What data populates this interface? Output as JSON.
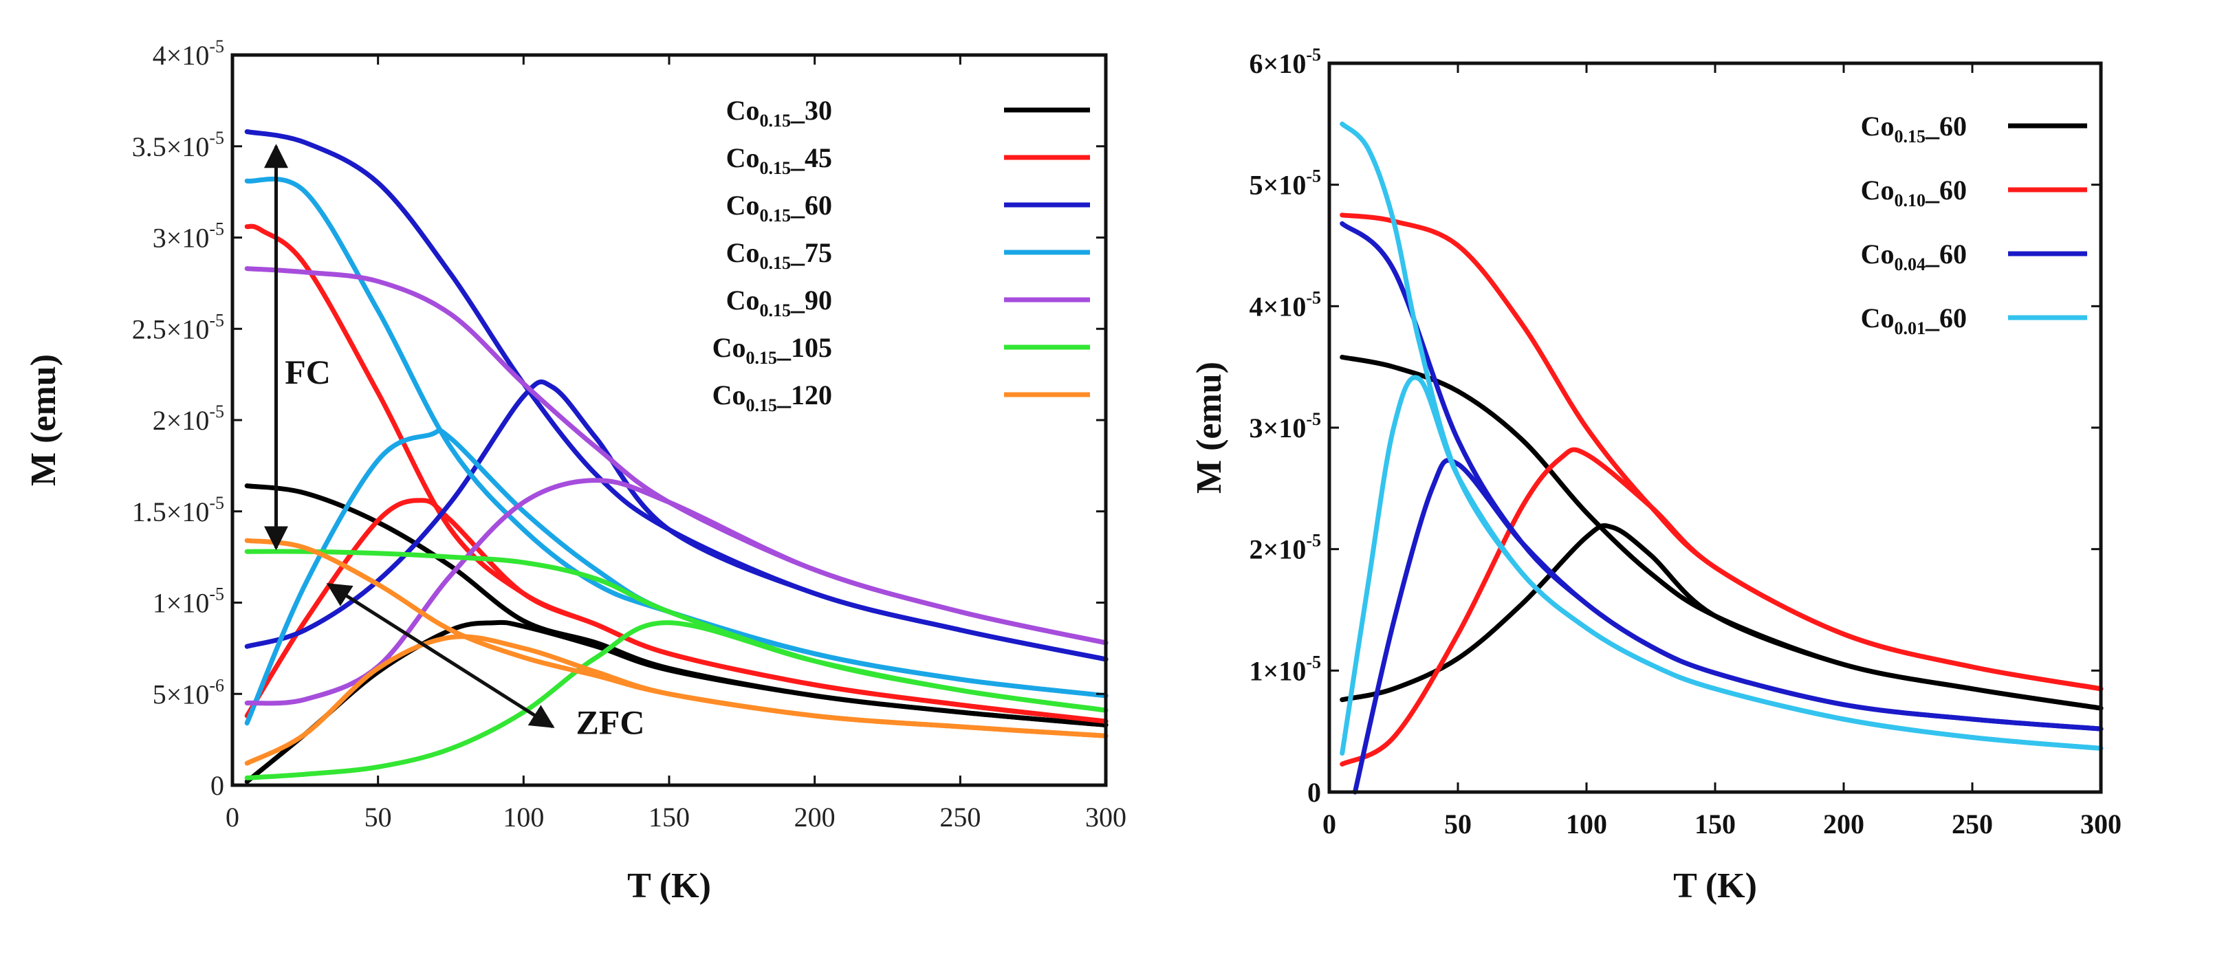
{
  "chart_data": [
    {
      "type": "line",
      "title": "",
      "xlabel": "T (K)",
      "ylabel": "M (emu)",
      "xlim": [
        0,
        300
      ],
      "ylim": [
        0,
        4e-05
      ],
      "x_ticks": [
        "0",
        "50",
        "100",
        "150",
        "200",
        "250",
        "300"
      ],
      "y_ticks": [
        {
          "value": 0,
          "mantissa": "0",
          "exponent": ""
        },
        {
          "value": 5e-06,
          "mantissa": "5×10",
          "exponent": "-6"
        },
        {
          "value": 1e-05,
          "mantissa": "1×10",
          "exponent": "-5"
        },
        {
          "value": 1.5e-05,
          "mantissa": "1.5×10",
          "exponent": "-5"
        },
        {
          "value": 2e-05,
          "mantissa": "2×10",
          "exponent": "-5"
        },
        {
          "value": 2.5e-05,
          "mantissa": "2.5×10",
          "exponent": "-5"
        },
        {
          "value": 3e-05,
          "mantissa": "3×10",
          "exponent": "-5"
        },
        {
          "value": 3.5e-05,
          "mantissa": "3.5×10",
          "exponent": "-5"
        },
        {
          "value": 4e-05,
          "mantissa": "4×10",
          "exponent": "-5"
        }
      ],
      "legend_position": "top-right",
      "annotations": [
        {
          "text": "FC",
          "arrow": "double-vertical",
          "from": [
            15,
            3.5e-05
          ],
          "to": [
            15,
            1.3e-05
          ],
          "label_at": [
            18,
            2.2e-05
          ]
        },
        {
          "text": "ZFC",
          "arrow": "double-diagonal",
          "from": [
            33,
            1.1e-05
          ],
          "to": [
            110,
            3.2e-06
          ],
          "label_at": [
            118,
            2.8e-06
          ]
        }
      ],
      "series": [
        {
          "name": "Co0.15_30",
          "label_main": "Co",
          "label_sub": "0.15",
          "label_tail": "_30",
          "color": "#000000",
          "fc": {
            "x": [
              5,
              25,
              50,
              75,
              100,
              125,
              150,
              200,
              250,
              300
            ],
            "y": [
              16.4,
              16.0,
              14.4,
              12.0,
              9.0,
              7.8,
              6.4,
              4.9,
              4.0,
              3.3
            ]
          },
          "zfc": {
            "x": [
              5,
              25,
              50,
              75,
              90,
              100,
              125,
              150,
              200,
              250,
              300
            ],
            "y": [
              0.2,
              2.8,
              6.2,
              8.5,
              8.9,
              8.7,
              7.6,
              6.3,
              4.9,
              4.0,
              3.3
            ]
          }
        },
        {
          "name": "Co0.15_45",
          "label_main": "Co",
          "label_sub": "0.15",
          "label_tail": "_45",
          "color": "#ff1a1a",
          "fc": {
            "x": [
              5,
              10,
              25,
              50,
              75,
              100,
              125,
              150,
              200,
              250,
              300
            ],
            "y": [
              30.6,
              30.4,
              28.5,
              21.5,
              14.0,
              10.5,
              8.8,
              7.2,
              5.5,
              4.4,
              3.5
            ]
          },
          "zfc": {
            "x": [
              5,
              25,
              50,
              65,
              75,
              100,
              125,
              150,
              200,
              250,
              300
            ],
            "y": [
              3.8,
              9.0,
              14.5,
              15.6,
              14.5,
              10.5,
              8.8,
              7.2,
              5.5,
              4.4,
              3.5
            ]
          }
        },
        {
          "name": "Co0.15_60",
          "label_main": "Co",
          "label_sub": "0.15",
          "label_tail": "_60",
          "color": "#1a1ac8",
          "fc": {
            "x": [
              5,
              25,
              50,
              75,
              100,
              125,
              150,
              200,
              250,
              300
            ],
            "y": [
              35.8,
              35.2,
              33.0,
              28.0,
              22.0,
              17.0,
              14.0,
              10.5,
              8.5,
              6.9
            ]
          },
          "zfc": {
            "x": [
              5,
              25,
              50,
              75,
              100,
              110,
              125,
              150,
              200,
              250,
              300
            ],
            "y": [
              7.6,
              8.5,
              11.2,
              15.5,
              21.3,
              21.8,
              19.0,
              14.0,
              10.5,
              8.5,
              6.9
            ]
          }
        },
        {
          "name": "Co0.15_75",
          "label_main": "Co",
          "label_sub": "0.15",
          "label_tail": "_75",
          "color": "#1aa6e6",
          "fc": {
            "x": [
              5,
              25,
              50,
              75,
              100,
              125,
              150,
              200,
              250,
              300
            ],
            "y": [
              33.1,
              32.5,
              26.0,
              18.5,
              14.0,
              11.0,
              9.5,
              7.2,
              5.8,
              4.9
            ]
          },
          "zfc": {
            "x": [
              5,
              25,
              50,
              68,
              75,
              100,
              125,
              150,
              200,
              250,
              300
            ],
            "y": [
              3.4,
              11.0,
              17.8,
              19.2,
              19.0,
              15.0,
              11.8,
              9.5,
              7.2,
              5.8,
              4.9
            ]
          }
        },
        {
          "name": "Co0.15_90",
          "label_main": "Co",
          "label_sub": "0.15",
          "label_tail": "_90",
          "color": "#a64ddc",
          "fc": {
            "x": [
              5,
              25,
              50,
              75,
              100,
              125,
              150,
              200,
              250,
              300
            ],
            "y": [
              28.3,
              28.1,
              27.6,
              25.8,
              22.0,
              18.5,
              15.5,
              11.8,
              9.5,
              7.8
            ]
          },
          "zfc": {
            "x": [
              5,
              25,
              50,
              75,
              100,
              125,
              150,
              200,
              250,
              300
            ],
            "y": [
              4.5,
              4.7,
              6.5,
              11.5,
              15.5,
              16.7,
              15.5,
              11.8,
              9.5,
              7.8
            ]
          }
        },
        {
          "name": "Co0.15_105",
          "label_main": "Co",
          "label_sub": "0.15",
          "label_tail": "_105",
          "color": "#33e633",
          "fc": {
            "x": [
              5,
              25,
              50,
              75,
              100,
              125,
              150,
              200,
              250,
              300
            ],
            "y": [
              12.8,
              12.8,
              12.7,
              12.5,
              12.2,
              11.3,
              9.5,
              6.8,
              5.2,
              4.1
            ]
          },
          "zfc": {
            "x": [
              5,
              25,
              50,
              75,
              100,
              125,
              150,
              200,
              250,
              300
            ],
            "y": [
              0.4,
              0.6,
              1.0,
              2.0,
              4.0,
              7.0,
              8.9,
              6.8,
              5.2,
              4.1
            ]
          }
        },
        {
          "name": "Co0.15_120",
          "label_main": "Co",
          "label_sub": "0.15",
          "label_tail": "_120",
          "color": "#ff8c26",
          "fc": {
            "x": [
              5,
              25,
              50,
              75,
              100,
              125,
              150,
              200,
              250,
              300
            ],
            "y": [
              13.4,
              13.0,
              11.0,
              8.5,
              7.0,
              6.0,
              5.0,
              3.8,
              3.2,
              2.7
            ]
          },
          "zfc": {
            "x": [
              5,
              25,
              50,
              75,
              100,
              125,
              150,
              200,
              250,
              300
            ],
            "y": [
              1.2,
              2.8,
              6.4,
              8.1,
              7.5,
              6.2,
              5.0,
              3.8,
              3.2,
              2.7
            ]
          }
        }
      ],
      "y_unit_scale": 1e-06
    },
    {
      "type": "line",
      "title": "",
      "xlabel": "T (K)",
      "ylabel": "M (emu)",
      "xlim": [
        0,
        300
      ],
      "ylim": [
        0,
        6e-05
      ],
      "x_ticks": [
        "0",
        "50",
        "100",
        "150",
        "200",
        "250",
        "300"
      ],
      "y_ticks": [
        {
          "value": 0,
          "mantissa": "0",
          "exponent": ""
        },
        {
          "value": 1e-05,
          "mantissa": "1×10",
          "exponent": "-5"
        },
        {
          "value": 2e-05,
          "mantissa": "2×10",
          "exponent": "-5"
        },
        {
          "value": 3e-05,
          "mantissa": "3×10",
          "exponent": "-5"
        },
        {
          "value": 4e-05,
          "mantissa": "4×10",
          "exponent": "-5"
        },
        {
          "value": 5e-05,
          "mantissa": "5×10",
          "exponent": "-5"
        },
        {
          "value": 6e-05,
          "mantissa": "6×10",
          "exponent": "-5"
        }
      ],
      "legend_position": "top-right",
      "series": [
        {
          "name": "Co0.15_60",
          "label_main": "Co",
          "label_sub": "0.15",
          "label_tail": "_60",
          "color": "#000000",
          "fc": {
            "x": [
              5,
              25,
              50,
              75,
              100,
              125,
              150,
              200,
              250,
              300
            ],
            "y": [
              35.8,
              35.0,
              33.0,
              29.0,
              23.0,
              18.0,
              14.5,
              10.5,
              8.5,
              6.9
            ]
          },
          "zfc": {
            "x": [
              5,
              25,
              50,
              75,
              100,
              110,
              125,
              150,
              200,
              250,
              300
            ],
            "y": [
              7.6,
              8.5,
              11.0,
              15.5,
              21.0,
              21.8,
              19.5,
              14.5,
              10.5,
              8.5,
              6.9
            ]
          }
        },
        {
          "name": "Co0.10_60",
          "label_main": "Co",
          "label_sub": "0.10",
          "label_tail": "_60",
          "color": "#ff1a1a",
          "fc": {
            "x": [
              5,
              25,
              50,
              75,
              100,
              125,
              150,
              200,
              250,
              300
            ],
            "y": [
              47.5,
              47.0,
              45.0,
              38.5,
              30.0,
              23.5,
              18.5,
              13.0,
              10.3,
              8.5
            ]
          },
          "zfc": {
            "x": [
              5,
              25,
              50,
              75,
              90,
              100,
              125,
              150,
              200,
              250,
              300
            ],
            "y": [
              2.3,
              4.5,
              13.0,
              23.5,
              27.5,
              27.8,
              23.5,
              18.5,
              13.0,
              10.3,
              8.5
            ]
          }
        },
        {
          "name": "Co0.04_60",
          "label_main": "Co",
          "label_sub": "0.04",
          "label_tail": "_60",
          "color": "#1a1ac8",
          "fc": {
            "x": [
              5,
              25,
              50,
              75,
              100,
              125,
              150,
              200,
              250,
              300
            ],
            "y": [
              46.8,
              43.0,
              29.0,
              20.5,
              15.5,
              12.0,
              9.8,
              7.2,
              6.0,
              5.2
            ]
          },
          "zfc": {
            "x": [
              10,
              25,
              40,
              50,
              75,
              100,
              125,
              150,
              200,
              250,
              300
            ],
            "y": [
              0.0,
              14.0,
              25.0,
              27.0,
              20.5,
              15.5,
              12.0,
              9.8,
              7.2,
              6.0,
              5.2
            ]
          }
        },
        {
          "name": "Co0.01_60",
          "label_main": "Co",
          "label_sub": "0.01",
          "label_tail": "_60",
          "color": "#33c3ee",
          "fc": {
            "x": [
              5,
              15,
              25,
              35,
              50,
              75,
              100,
              125,
              150,
              200,
              250,
              300
            ],
            "y": [
              55.0,
              53.0,
              47.0,
              37.0,
              26.0,
              18.0,
              13.5,
              10.5,
              8.5,
              6.0,
              4.5,
              3.6
            ]
          },
          "zfc": {
            "x": [
              5,
              15,
              25,
              35,
              50,
              75,
              100,
              125,
              150,
              200,
              250,
              300
            ],
            "y": [
              3.2,
              17.0,
              30.0,
              34.0,
              26.0,
              18.0,
              13.5,
              10.5,
              8.5,
              6.0,
              4.5,
              3.6
            ]
          }
        }
      ],
      "y_unit_scale": 1e-06
    }
  ]
}
